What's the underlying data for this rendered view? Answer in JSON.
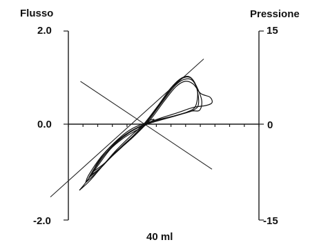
{
  "chart_data": {
    "type": "line",
    "left_axis": {
      "label": "Flusso",
      "range": [
        -2.0,
        2.0
      ],
      "tick_labels": [
        "2.0",
        "0.0",
        "-2.0"
      ]
    },
    "right_axis": {
      "label": "Pressione",
      "range": [
        -15,
        15
      ],
      "tick_labels": [
        "15",
        "0",
        "-15"
      ]
    },
    "x_axis": {
      "label": "40 ml",
      "tick_count": 14
    },
    "reference_lines": [
      {
        "name": "compliance-line",
        "x": [
          -9.0,
          5.8
        ],
        "y": [
          -1.52,
          1.4
        ]
      },
      {
        "name": "resistance-line",
        "x": [
          -6.1,
          6.6
        ],
        "y": [
          0.92,
          -0.94
        ]
      }
    ],
    "loops": [
      {
        "x": [
          -5.6,
          -4.6,
          -3.4,
          -2.1,
          -0.9,
          0.2,
          1.4,
          2.6,
          3.6,
          4.4,
          5.0,
          5.6,
          5.4,
          4.6,
          3.0,
          1.1,
          -0.4,
          -1.6,
          -2.8,
          -4.1,
          -5.3,
          -5.6
        ],
        "y": [
          -1.22,
          -1.02,
          -0.74,
          -0.46,
          -0.22,
          0.05,
          0.4,
          0.77,
          0.98,
          1.02,
          0.86,
          0.52,
          0.3,
          0.28,
          0.18,
          0.08,
          -0.02,
          -0.16,
          -0.38,
          -0.68,
          -1.06,
          -1.22
        ]
      },
      {
        "x": [
          -5.3,
          -4.3,
          -3.1,
          -1.9,
          -0.7,
          0.4,
          1.6,
          2.8,
          3.7,
          4.5,
          5.1,
          5.3,
          4.8,
          3.4,
          1.7,
          0.2,
          -1.0,
          -2.1,
          -3.3,
          -4.5,
          -5.3
        ],
        "y": [
          -1.12,
          -0.94,
          -0.68,
          -0.44,
          -0.2,
          0.08,
          0.44,
          0.8,
          0.98,
          1.0,
          0.8,
          0.44,
          0.3,
          0.2,
          0.1,
          0.0,
          -0.12,
          -0.28,
          -0.52,
          -0.84,
          -1.12
        ]
      },
      {
        "x": [
          -5.0,
          -4.0,
          -2.9,
          -1.7,
          -0.5,
          0.6,
          1.8,
          3.0,
          3.9,
          4.7,
          5.2,
          5.0,
          4.2,
          2.8,
          1.2,
          -0.2,
          -1.4,
          -2.5,
          -3.7,
          -4.7,
          -5.0
        ],
        "y": [
          -1.05,
          -0.88,
          -0.62,
          -0.4,
          -0.16,
          0.12,
          0.48,
          0.82,
          0.96,
          0.94,
          0.7,
          0.38,
          0.26,
          0.16,
          0.06,
          -0.04,
          -0.18,
          -0.36,
          -0.62,
          -0.92,
          -1.05
        ]
      },
      {
        "x": [
          -4.8,
          -3.8,
          -2.7,
          -1.5,
          -0.3,
          0.8,
          2.0,
          3.1,
          4.0,
          4.8,
          5.5,
          6.4,
          6.6,
          6.0,
          4.8,
          3.2,
          1.5,
          0.1,
          -1.2,
          -2.4,
          -3.6,
          -4.6,
          -4.8
        ],
        "y": [
          -0.98,
          -0.82,
          -0.58,
          -0.36,
          -0.12,
          0.14,
          0.5,
          0.8,
          0.92,
          0.86,
          0.66,
          0.58,
          0.46,
          0.4,
          0.36,
          0.24,
          0.12,
          0.0,
          -0.14,
          -0.32,
          -0.56,
          -0.86,
          -0.98
        ]
      },
      {
        "x": [
          -6.2,
          -5.2,
          -4.0,
          -2.8,
          -1.6,
          -0.6,
          0.4,
          1.0,
          0.2,
          -0.8,
          -2.0,
          -3.2,
          -4.4,
          -5.6,
          -6.2
        ],
        "y": [
          -1.38,
          -1.18,
          -0.88,
          -0.58,
          -0.32,
          -0.12,
          0.06,
          0.1,
          -0.02,
          -0.14,
          -0.3,
          -0.52,
          -0.86,
          -1.22,
          -1.38
        ]
      }
    ]
  }
}
